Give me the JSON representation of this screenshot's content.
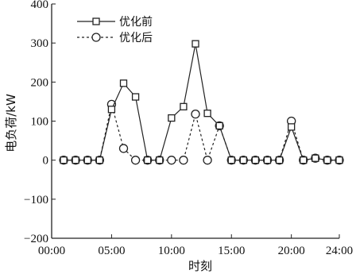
{
  "chart_data": {
    "type": "line",
    "title": "",
    "xlabel": "时刻",
    "ylabel": "电负荷/kW",
    "x_range": [
      0,
      24
    ],
    "ylim": [
      -200,
      400
    ],
    "grid": false,
    "legend_position": "top-left",
    "x_ticks": [
      {
        "value": 0,
        "label": "00:00"
      },
      {
        "value": 5,
        "label": "05:00"
      },
      {
        "value": 10,
        "label": "10:00"
      },
      {
        "value": 15,
        "label": "15:00"
      },
      {
        "value": 20,
        "label": "20:00"
      },
      {
        "value": 24,
        "label": "24:00"
      }
    ],
    "y_ticks": [
      {
        "value": 400,
        "label": "400"
      },
      {
        "value": 300,
        "label": "300"
      },
      {
        "value": 200,
        "label": "200"
      },
      {
        "value": 100,
        "label": "100"
      },
      {
        "value": 0,
        "label": "0"
      },
      {
        "value": -100,
        "label": "−100"
      },
      {
        "value": -200,
        "label": "−200"
      }
    ],
    "x": [
      1,
      2,
      3,
      4,
      5,
      6,
      7,
      8,
      9,
      10,
      11,
      12,
      13,
      14,
      15,
      16,
      17,
      18,
      19,
      20,
      21,
      22,
      23,
      24
    ],
    "series": [
      {
        "name": "优化前",
        "marker": "square",
        "line": "solid",
        "values": [
          0,
          0,
          0,
          0,
          130,
          197,
          162,
          0,
          0,
          108,
          137,
          298,
          120,
          88,
          0,
          0,
          0,
          0,
          0,
          85,
          0,
          5,
          0,
          0
        ]
      },
      {
        "name": "优化后",
        "marker": "circle",
        "line": "dashed",
        "values": [
          0,
          0,
          0,
          0,
          143,
          30,
          0,
          0,
          0,
          0,
          0,
          118,
          0,
          88,
          0,
          0,
          0,
          0,
          0,
          100,
          0,
          5,
          0,
          0
        ]
      }
    ],
    "colors": {
      "line": "#222222",
      "marker_fill": "#ffffff"
    }
  }
}
